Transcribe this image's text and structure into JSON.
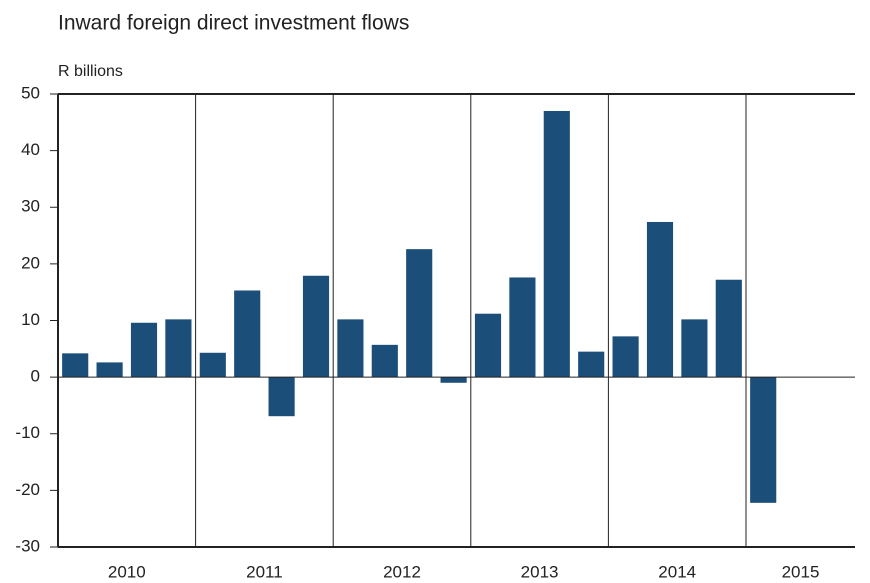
{
  "chart_data": {
    "type": "bar",
    "title": "Inward foreign direct investment flows",
    "ylabel": "R billions",
    "groups": [
      "2010",
      "2011",
      "2012",
      "2013",
      "2014",
      "2015"
    ],
    "categories": [
      null,
      null,
      null,
      null,
      null,
      null,
      null,
      null,
      null,
      null,
      null,
      null,
      null,
      null,
      null,
      null,
      null,
      null,
      null,
      null,
      null
    ],
    "values": [
      4.2,
      2.6,
      9.6,
      10.2,
      4.3,
      15.3,
      -6.9,
      17.9,
      10.2,
      5.7,
      22.6,
      -1.0,
      11.2,
      17.6,
      47,
      4.5,
      7.2,
      27.4,
      10.2,
      17.2,
      -22.2
    ],
    "color": "#1b4f7a",
    "ylim": [
      -30,
      50
    ],
    "yticks": [
      -30,
      -20,
      -10,
      0,
      10,
      20,
      30,
      40,
      50
    ]
  }
}
